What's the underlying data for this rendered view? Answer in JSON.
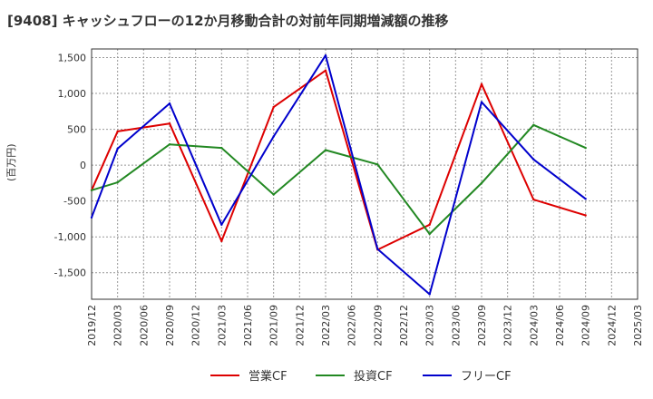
{
  "chart_data": {
    "type": "line",
    "title": "[9408]  キャッシュフローの12か月移動合計の対前年同期増減額の推移",
    "ylabel": "(百万円)",
    "xlabel": "",
    "ylim": [
      -1870,
      1620
    ],
    "yticks": [
      1500,
      1000,
      500,
      0,
      -500,
      -1000,
      -1500
    ],
    "ytick_labels": [
      "1,500",
      "1,000",
      "500",
      "0",
      "-500",
      "-1,000",
      "-1,500"
    ],
    "categories": [
      "2019/12",
      "2020/03",
      "2020/06",
      "2020/09",
      "2020/12",
      "2021/03",
      "2021/06",
      "2021/09",
      "2021/12",
      "2022/03",
      "2022/06",
      "2022/09",
      "2022/12",
      "2023/03",
      "2023/06",
      "2023/09",
      "2023/12",
      "2024/03",
      "2024/06",
      "2024/09",
      "2024/12",
      "2025/03"
    ],
    "grid": true,
    "legend_position": "bottom",
    "series": [
      {
        "name": "営業CF",
        "color": "#dd0000",
        "values": [
          -350,
          470,
          null,
          580,
          null,
          -1060,
          null,
          810,
          null,
          1320,
          null,
          -1180,
          null,
          -830,
          null,
          1130,
          null,
          -480,
          null,
          -700,
          null,
          null
        ]
      },
      {
        "name": "投資CF",
        "color": "#228822",
        "values": [
          -350,
          -240,
          null,
          290,
          null,
          240,
          null,
          -410,
          null,
          210,
          null,
          10,
          null,
          -960,
          null,
          -250,
          null,
          560,
          null,
          240,
          null,
          null
        ]
      },
      {
        "name": "フリーCF",
        "color": "#0000cc",
        "values": [
          -730,
          230,
          null,
          860,
          null,
          -830,
          null,
          400,
          null,
          1530,
          null,
          -1170,
          null,
          -1800,
          null,
          880,
          null,
          80,
          null,
          -470,
          null,
          null
        ]
      }
    ]
  }
}
